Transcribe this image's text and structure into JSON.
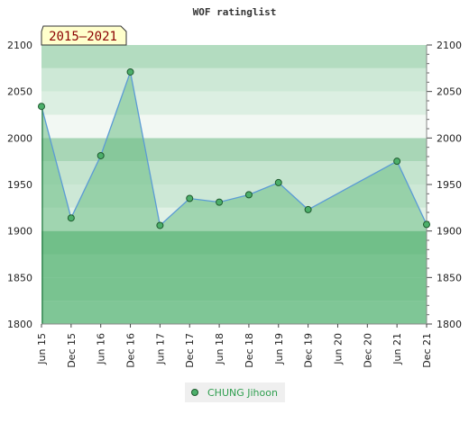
{
  "chart_data": {
    "type": "area",
    "title": "WOF ratinglist",
    "badge": "2015–2021",
    "x_ticks": [
      "Jun 15",
      "Dec 15",
      "Jun 16",
      "Dec 16",
      "Jun 17",
      "Dec 17",
      "Jun 18",
      "Dec 18",
      "Jun 19",
      "Dec 19",
      "Jun 20",
      "Dec 20",
      "Jun 21",
      "Dec 21"
    ],
    "y_ticks": [
      "1800",
      "1850",
      "1900",
      "1950",
      "2000",
      "2050",
      "2100"
    ],
    "ylim": [
      1800,
      2100
    ],
    "series": [
      {
        "name": "CHUNG Jihoon",
        "points": [
          {
            "x": "Jun 15",
            "y": 2034
          },
          {
            "x": "Dec 15",
            "y": 1914
          },
          {
            "x": "Jun 16",
            "y": 1981
          },
          {
            "x": "Dec 16",
            "y": 2071
          },
          {
            "x": "Jun 17",
            "y": 1906
          },
          {
            "x": "Dec 17",
            "y": 1935
          },
          {
            "x": "Jun 18",
            "y": 1931
          },
          {
            "x": "Dec 18",
            "y": 1939
          },
          {
            "x": "Jun 19",
            "y": 1952
          },
          {
            "x": "Dec 19",
            "y": 1923
          },
          {
            "x": "Jun 21",
            "y": 1975
          },
          {
            "x": "Dec 21",
            "y": 1907
          }
        ]
      }
    ],
    "legend_position": "bottom-center",
    "colors": {
      "fill": "#6cbd85",
      "line": "#5b9bd5",
      "marker": "#4caf6a",
      "legend_text": "#2e9e4e",
      "badge_bg": "#ffffcc",
      "badge_text": "#8b0000"
    }
  }
}
